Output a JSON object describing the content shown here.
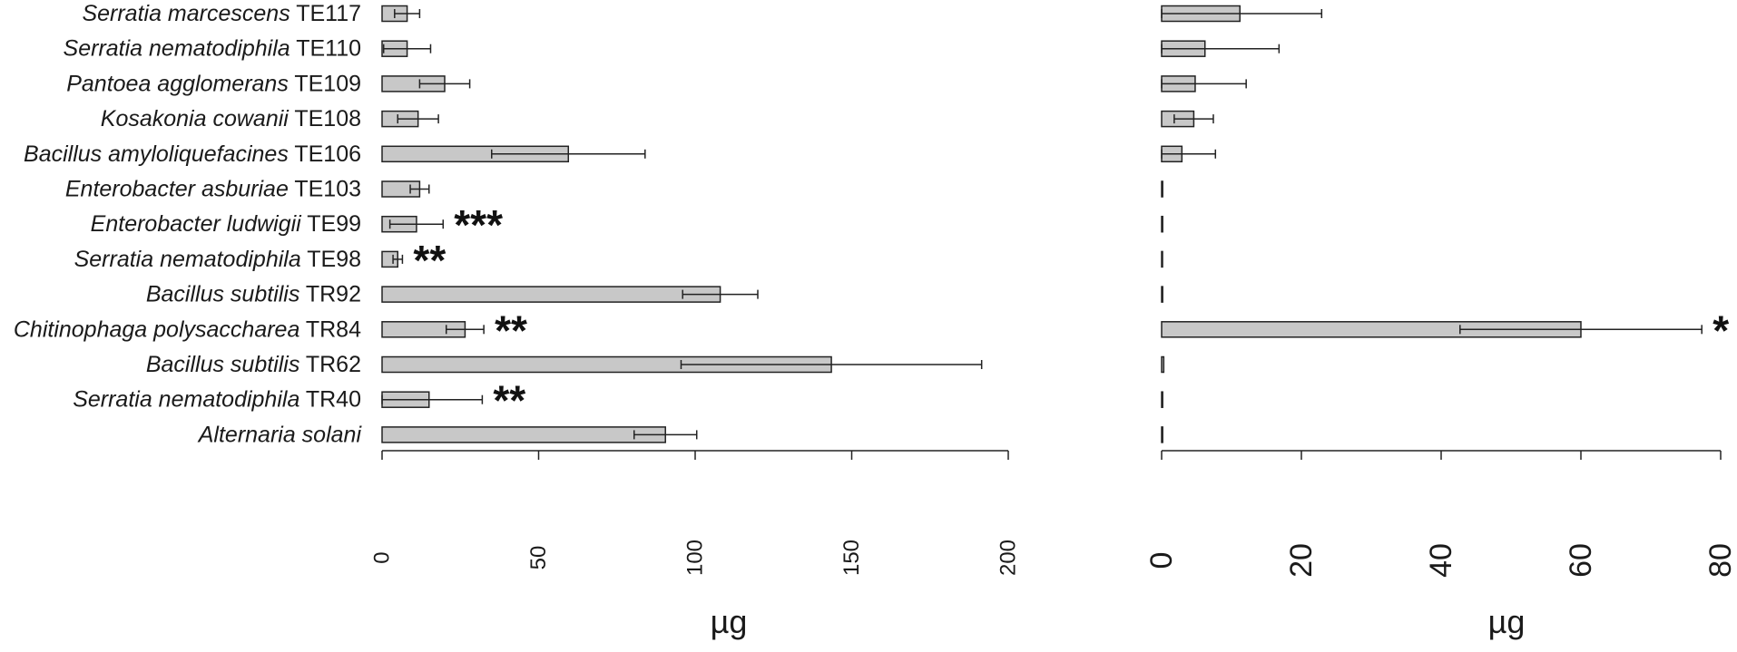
{
  "colors": {
    "bar_fill": "#c8c8c8",
    "bar_stroke": "#222222",
    "text": "#1a1a1a"
  },
  "chart_data": [
    {
      "type": "bar",
      "orientation": "horizontal",
      "xlabel": "µg",
      "xlim": [
        0,
        200
      ],
      "ticks": [
        "0",
        "50",
        "100",
        "150",
        "200"
      ],
      "grid": false,
      "categories": [
        {
          "species": "Serratia marcescens",
          "strain": "TE117"
        },
        {
          "species": "Serratia nematodiphila",
          "strain": "TE110"
        },
        {
          "species": "Pantoea agglomerans",
          "strain": "TE109"
        },
        {
          "species": "Kosakonia cowanii",
          "strain": "TE108"
        },
        {
          "species": "Bacillus amyloliquefacines",
          "strain": "TE106"
        },
        {
          "species": "Enterobacter asburiae",
          "strain": "TE103"
        },
        {
          "species": "Enterobacter ludwigii",
          "strain": "TE99"
        },
        {
          "species": "Serratia nematodiphila",
          "strain": "TE98"
        },
        {
          "species": "Bacillus subtilis",
          "strain": "TR92"
        },
        {
          "species": "Chitinophaga polysaccharea",
          "strain": "TR84"
        },
        {
          "species": "Bacillus subtilis",
          "strain": "TR62"
        },
        {
          "species": "Serratia nematodiphila",
          "strain": "TR40"
        },
        {
          "species": "Alternaria solani",
          "strain": ""
        }
      ],
      "values": [
        8,
        8,
        20,
        11.5,
        59.5,
        12,
        11,
        5,
        108,
        26.5,
        143.5,
        15,
        90.5
      ],
      "error": [
        4,
        7.5,
        8,
        6.5,
        24.5,
        3,
        8.5,
        1.5,
        12,
        6,
        48,
        17,
        10
      ],
      "significance": [
        "",
        "",
        "",
        "",
        "",
        "",
        "***",
        "**",
        "",
        "**",
        "",
        "**",
        ""
      ]
    },
    {
      "type": "bar",
      "orientation": "horizontal",
      "xlabel": "µg",
      "xlim": [
        0,
        80
      ],
      "ticks": [
        "0",
        "20",
        "40",
        "60",
        "80"
      ],
      "grid": false,
      "values": [
        11.2,
        6.2,
        4.8,
        4.6,
        2.9,
        0.15,
        0.15,
        0.1,
        0.15,
        60,
        0.3,
        0.15,
        0.15
      ],
      "error": [
        11.7,
        10.6,
        7.3,
        2.8,
        4.8,
        0,
        0,
        0,
        0,
        17.3,
        0,
        0,
        0
      ],
      "significance": [
        "",
        "",
        "",
        "",
        "",
        "",
        "",
        "",
        "",
        "*",
        "",
        "",
        ""
      ]
    }
  ]
}
